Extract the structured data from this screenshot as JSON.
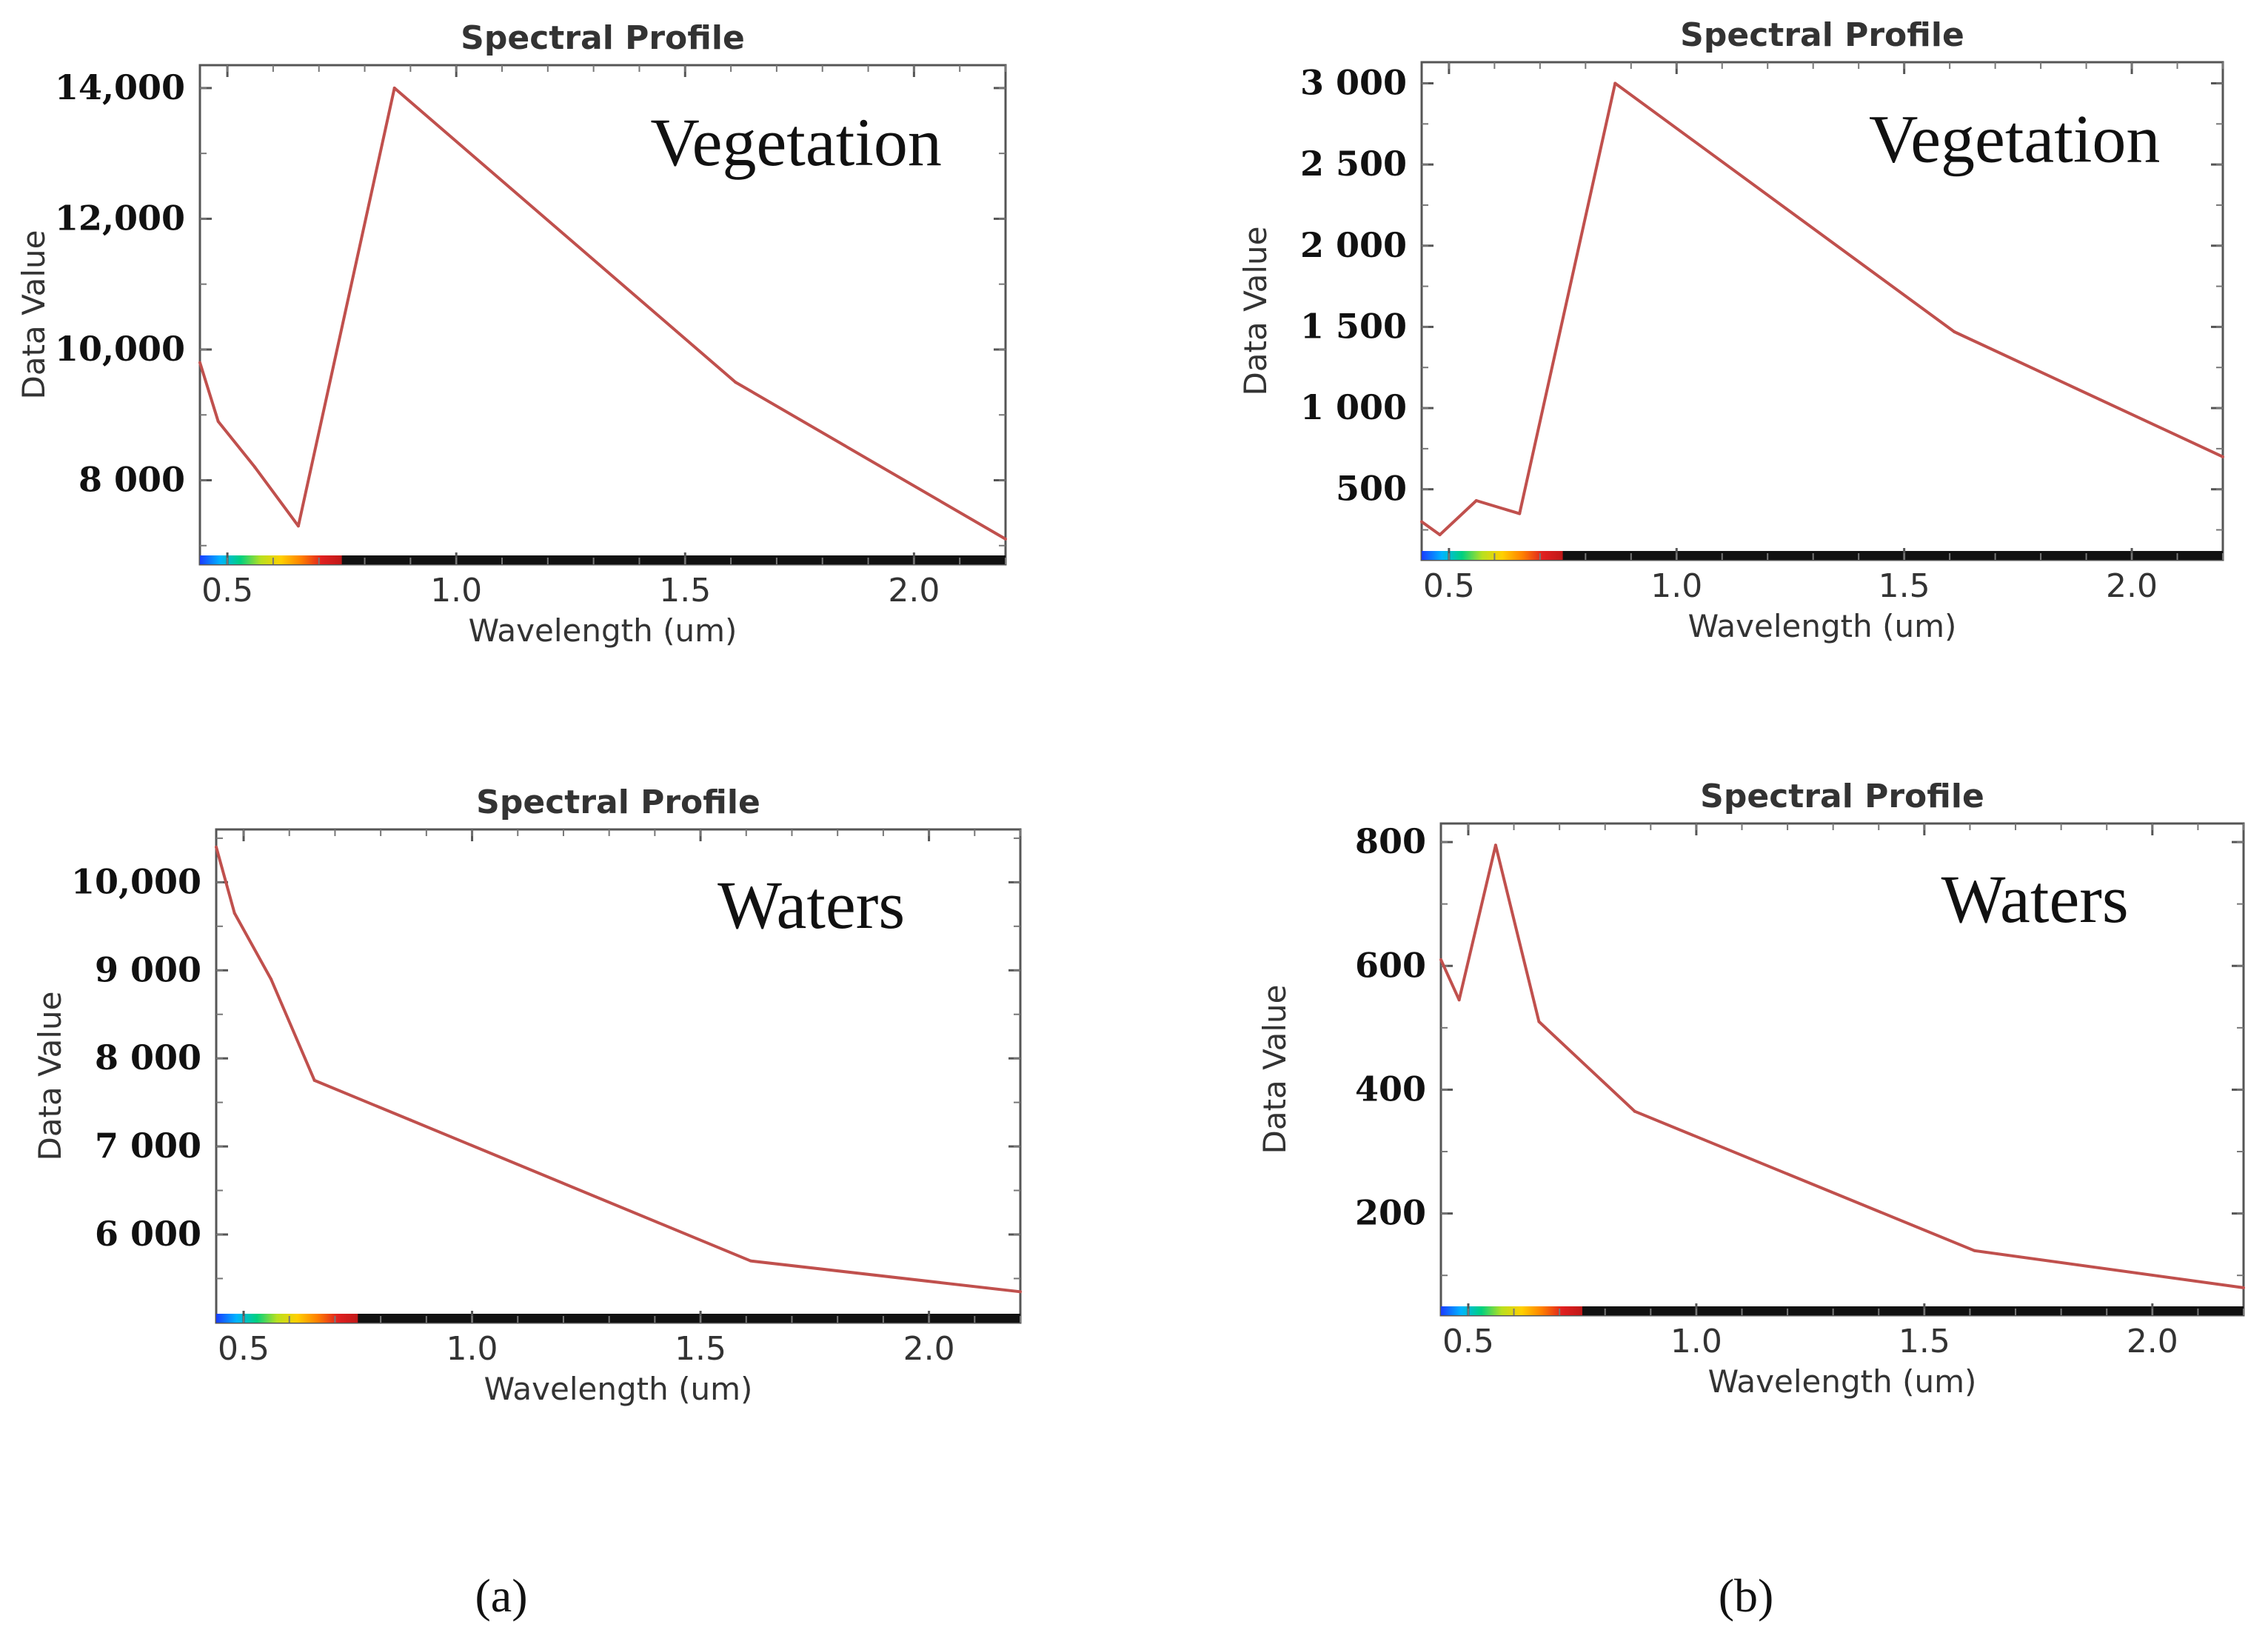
{
  "figure": {
    "subfigure_labels": [
      "(a)",
      "(b)"
    ]
  },
  "spectrum_colors": [
    "#1a3cff",
    "#00b4ff",
    "#00d080",
    "#b8e020",
    "#ffd000",
    "#ff8000",
    "#e02020",
    "#c01818"
  ],
  "chart_data": [
    {
      "id": "a-vegetation",
      "type": "line",
      "title": "Spectral Profile",
      "xlabel": "Wavelength (um)",
      "ylabel": "Data Value",
      "annotation": "Vegetation",
      "xlim": [
        0.44,
        2.2
      ],
      "ylim": [
        6850,
        14350
      ],
      "xticks": [
        {
          "v": 0.5,
          "label": "0.5"
        },
        {
          "v": 1.0,
          "label": "1.0"
        },
        {
          "v": 1.5,
          "label": "1.5"
        },
        {
          "v": 2.0,
          "label": "2.0"
        }
      ],
      "yticks": [
        {
          "v": 8000,
          "label": "8 000"
        },
        {
          "v": 10000,
          "label": "10,000"
        },
        {
          "v": 12000,
          "label": "12,000"
        },
        {
          "v": 14000,
          "label": "14,000"
        }
      ],
      "series": [
        {
          "name": "Vegetation",
          "color": "#c0504d",
          "x": [
            0.44,
            0.48,
            0.56,
            0.655,
            0.865,
            1.61,
            2.2
          ],
          "y": [
            9800,
            8900,
            8200,
            7300,
            14000,
            9500,
            7100
          ]
        }
      ]
    },
    {
      "id": "b-vegetation",
      "type": "line",
      "title": "Spectral Profile",
      "xlabel": "Wavelength (um)",
      "ylabel": "Data Value",
      "annotation": "Vegetation",
      "xlim": [
        0.44,
        2.2
      ],
      "ylim": [
        120,
        3130
      ],
      "xticks": [
        {
          "v": 0.5,
          "label": "0.5"
        },
        {
          "v": 1.0,
          "label": "1.0"
        },
        {
          "v": 1.5,
          "label": "1.5"
        },
        {
          "v": 2.0,
          "label": "2.0"
        }
      ],
      "yticks": [
        {
          "v": 500,
          "label": "500"
        },
        {
          "v": 1000,
          "label": "1 000"
        },
        {
          "v": 1500,
          "label": "1 500"
        },
        {
          "v": 2000,
          "label": "2 000"
        },
        {
          "v": 2500,
          "label": "2 500"
        },
        {
          "v": 3000,
          "label": "3 000"
        }
      ],
      "series": [
        {
          "name": "Vegetation",
          "color": "#c0504d",
          "x": [
            0.44,
            0.48,
            0.56,
            0.655,
            0.865,
            1.61,
            2.2
          ],
          "y": [
            300,
            220,
            430,
            350,
            3000,
            1470,
            700
          ]
        }
      ]
    },
    {
      "id": "a-waters",
      "type": "line",
      "title": "Spectral Profile",
      "xlabel": "Wavelength (um)",
      "ylabel": "Data Value",
      "annotation": "Waters",
      "xlim": [
        0.44,
        2.2
      ],
      "ylim": [
        5100,
        10600
      ],
      "xticks": [
        {
          "v": 0.5,
          "label": "0.5"
        },
        {
          "v": 1.0,
          "label": "1.0"
        },
        {
          "v": 1.5,
          "label": "1.5"
        },
        {
          "v": 2.0,
          "label": "2.0"
        }
      ],
      "yticks": [
        {
          "v": 6000,
          "label": "6 000"
        },
        {
          "v": 7000,
          "label": "7 000"
        },
        {
          "v": 8000,
          "label": "8 000"
        },
        {
          "v": 9000,
          "label": "9 000"
        },
        {
          "v": 10000,
          "label": "10,000"
        }
      ],
      "series": [
        {
          "name": "Waters",
          "color": "#c0504d",
          "x": [
            0.44,
            0.48,
            0.56,
            0.655,
            0.865,
            1.61,
            2.2
          ],
          "y": [
            10400,
            9650,
            8900,
            7750,
            7300,
            5700,
            5350
          ]
        }
      ]
    },
    {
      "id": "b-waters",
      "type": "line",
      "title": "Spectral Profile",
      "xlabel": "Wavelength (um)",
      "ylabel": "Data Value",
      "annotation": "Waters",
      "xlim": [
        0.44,
        2.2
      ],
      "ylim": [
        50,
        830
      ],
      "xticks": [
        {
          "v": 0.5,
          "label": "0.5"
        },
        {
          "v": 1.0,
          "label": "1.0"
        },
        {
          "v": 1.5,
          "label": "1.5"
        },
        {
          "v": 2.0,
          "label": "2.0"
        }
      ],
      "yticks": [
        {
          "v": 200,
          "label": "200"
        },
        {
          "v": 400,
          "label": "400"
        },
        {
          "v": 600,
          "label": "600"
        },
        {
          "v": 800,
          "label": "800"
        }
      ],
      "series": [
        {
          "name": "Waters",
          "color": "#c0504d",
          "x": [
            0.44,
            0.48,
            0.56,
            0.655,
            0.865,
            1.61,
            2.2
          ],
          "y": [
            610,
            545,
            795,
            510,
            365,
            140,
            80
          ]
        }
      ]
    }
  ]
}
